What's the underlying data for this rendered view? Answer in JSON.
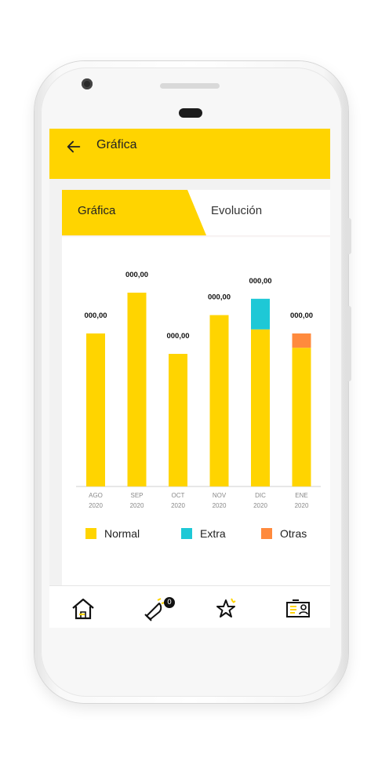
{
  "appbar": {
    "title": "Gráfica"
  },
  "tabs": [
    {
      "label": "Gráfica",
      "active": true
    },
    {
      "label": "Evolución",
      "active": false
    }
  ],
  "colors": {
    "accent": "#ffd400",
    "normal": "#ffd400",
    "extra": "#1ec8d6",
    "otras": "#ff8a3d"
  },
  "chart_data": {
    "type": "bar",
    "stacked": true,
    "categories": [
      "AGO 2020",
      "SEP 2020",
      "OCT 2020",
      "NOV 2020",
      "DIC 2020",
      "ENE 2020"
    ],
    "tick_labels": [
      {
        "month": "AGO",
        "year": "2020"
      },
      {
        "month": "SEP",
        "year": "2020"
      },
      {
        "month": "OCT",
        "year": "2020"
      },
      {
        "month": "NOV",
        "year": "2020"
      },
      {
        "month": "DIC",
        "year": "2020"
      },
      {
        "month": "ENE",
        "year": "2020"
      }
    ],
    "data_labels": [
      "000,00",
      "000,00",
      "000,00",
      "000,00",
      "000,00",
      "000,00"
    ],
    "series": [
      {
        "name": "Normal",
        "values": [
          150,
          190,
          130,
          168,
          154,
          136
        ]
      },
      {
        "name": "Extra",
        "values": [
          0,
          0,
          0,
          0,
          30,
          0
        ]
      },
      {
        "name": "Otras",
        "values": [
          0,
          0,
          0,
          0,
          0,
          14
        ]
      }
    ],
    "ylim": [
      0,
      220
    ],
    "grid": false,
    "legend_position": "bottom"
  },
  "legend": [
    {
      "label": "Normal",
      "color": "#ffd400"
    },
    {
      "label": "Extra",
      "color": "#1ec8d6"
    },
    {
      "label": "Otras",
      "color": "#ff8a3d"
    }
  ],
  "bottom_nav": {
    "items": [
      {
        "icon": "home-icon"
      },
      {
        "icon": "notifications-icon",
        "badge": "0"
      },
      {
        "icon": "favorites-icon"
      },
      {
        "icon": "profile-card-icon"
      }
    ]
  }
}
